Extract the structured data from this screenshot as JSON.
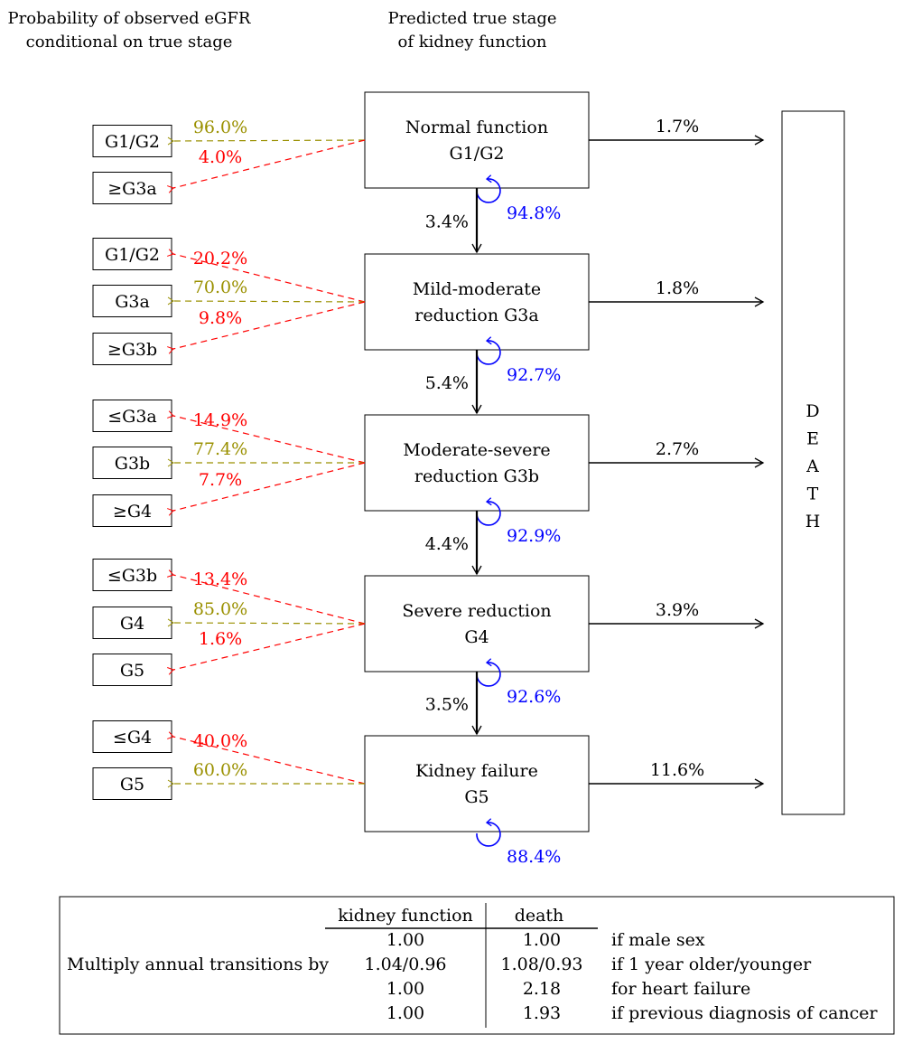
{
  "colors": {
    "correct": "#9a9000",
    "misclass": "#ff0000",
    "self": "#0000ff",
    "main": "#000000"
  },
  "headers": {
    "left": [
      "Probability of observed eGFR",
      "conditional on true stage"
    ],
    "middle": [
      "Predicted true stage",
      "of kidney function"
    ]
  },
  "death_label": [
    "D",
    "E",
    "A",
    "T",
    "H"
  ],
  "stages": [
    {
      "name": [
        "Normal function",
        "G1/G2"
      ],
      "death": "1.7%",
      "stay": "94.8%",
      "progress": "3.4%",
      "observed": [
        {
          "label": "G1/G2",
          "pct": "96.0%",
          "correct": true
        },
        {
          "label": "≥G3a",
          "pct": "4.0%",
          "correct": false
        }
      ]
    },
    {
      "name": [
        "Mild-moderate",
        "reduction G3a"
      ],
      "death": "1.8%",
      "stay": "92.7%",
      "progress": "5.4%",
      "observed": [
        {
          "label": "G1/G2",
          "pct": "20.2%",
          "correct": false
        },
        {
          "label": "G3a",
          "pct": "70.0%",
          "correct": true
        },
        {
          "label": "≥G3b",
          "pct": "9.8%",
          "correct": false
        }
      ]
    },
    {
      "name": [
        "Moderate-severe",
        "reduction G3b"
      ],
      "death": "2.7%",
      "stay": "92.9%",
      "progress": "4.4%",
      "observed": [
        {
          "label": "≤G3a",
          "pct": "14.9%",
          "correct": false
        },
        {
          "label": "G3b",
          "pct": "77.4%",
          "correct": true
        },
        {
          "label": "≥G4",
          "pct": "7.7%",
          "correct": false
        }
      ]
    },
    {
      "name": [
        "Severe reduction",
        "G4"
      ],
      "death": "3.9%",
      "stay": "92.6%",
      "progress": "3.5%",
      "observed": [
        {
          "label": "≤G3b",
          "pct": "13.4%",
          "correct": false
        },
        {
          "label": "G4",
          "pct": "85.0%",
          "correct": true
        },
        {
          "label": "G5",
          "pct": "1.6%",
          "correct": false
        }
      ]
    },
    {
      "name": [
        "Kidney failure",
        "G5"
      ],
      "death": "11.6%",
      "stay": "88.4%",
      "progress": null,
      "observed": [
        {
          "label": "≤G4",
          "pct": "40.0%",
          "correct": false
        },
        {
          "label": "G5",
          "pct": "60.0%",
          "correct": true
        }
      ]
    }
  ],
  "table": {
    "row_label": "Multiply annual transitions by",
    "columns": [
      "kidney function",
      "death"
    ],
    "rows": [
      {
        "kidney": "1.00",
        "death": "1.00",
        "condition": "if male sex"
      },
      {
        "kidney": "1.04/0.96",
        "death": "1.08/0.93",
        "condition": "if 1 year older/younger"
      },
      {
        "kidney": "1.00",
        "death": "2.18",
        "condition": "for heart failure"
      },
      {
        "kidney": "1.00",
        "death": "1.93",
        "condition": "if previous diagnosis of cancer"
      }
    ]
  }
}
